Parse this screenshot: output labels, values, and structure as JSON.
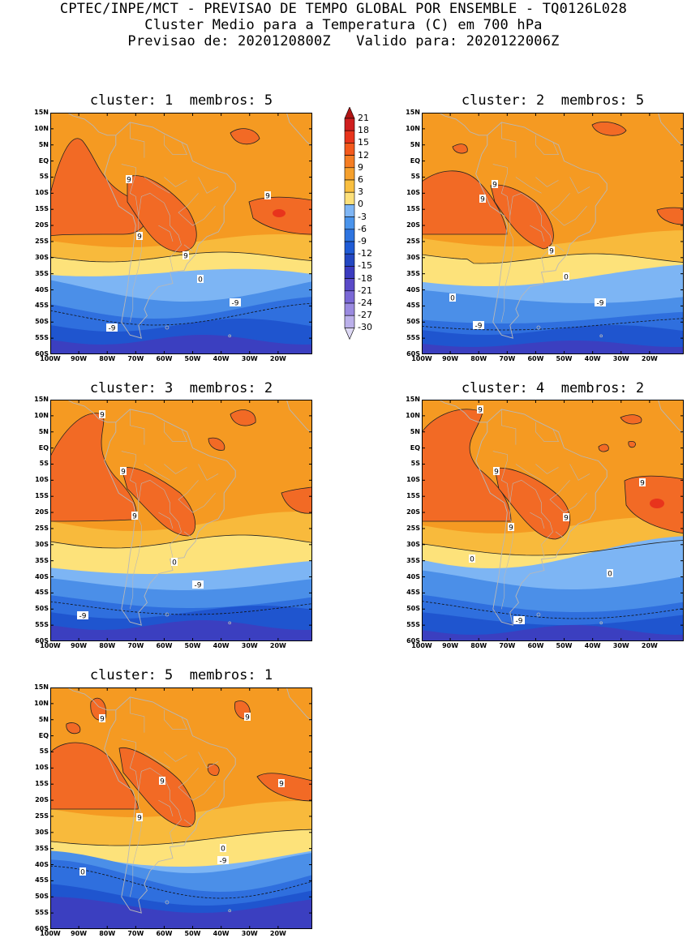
{
  "header": {
    "line1": "CPTEC/INPE/MCT - PREVISAO DE TEMPO GLOBAL POR ENSEMBLE - TQ0126L028",
    "line2": "Cluster Medio para a Temperatura (C) em 700 hPa",
    "line3": "Previsao de: 2020120800Z   Valido para: 2020122006Z"
  },
  "panels": [
    {
      "title": "cluster: 1  membros: 5",
      "labels": [
        "9",
        "9",
        "9",
        "9",
        "0",
        "-9",
        "-9"
      ]
    },
    {
      "title": "cluster: 2  membros: 5",
      "labels": [
        "9",
        "9",
        "9",
        "0",
        "0",
        "-9",
        "-9"
      ]
    },
    {
      "title": "cluster: 3  membros: 2",
      "labels": [
        "9",
        "9",
        "9",
        "0",
        "-9",
        "-9"
      ]
    },
    {
      "title": "cluster: 4  membros: 2",
      "labels": [
        "9",
        "9",
        "9",
        "9",
        "9",
        "0",
        "0",
        "-9"
      ]
    },
    {
      "title": "cluster: 5  membros: 1",
      "labels": [
        "9",
        "9",
        "9",
        "9",
        "9",
        "0",
        "0",
        "-9"
      ]
    }
  ],
  "axes": {
    "lat_ticks": [
      "15N",
      "10N",
      "5N",
      "EQ",
      "5S",
      "10S",
      "15S",
      "20S",
      "25S",
      "30S",
      "35S",
      "40S",
      "45S",
      "50S",
      "55S",
      "60S"
    ],
    "lon_ticks": [
      "100W",
      "90W",
      "80W",
      "70W",
      "60W",
      "50W",
      "40W",
      "30W",
      "20W"
    ]
  },
  "colorbar": {
    "labels": [
      "21",
      "18",
      "15",
      "12",
      "9",
      "6",
      "3",
      "0",
      "-3",
      "-6",
      "-9",
      "-12",
      "-15",
      "-18",
      "-21",
      "-24",
      "-27",
      "-30"
    ],
    "colors": [
      "#b11515",
      "#cf1f1f",
      "#e8341c",
      "#f4591c",
      "#f57d23",
      "#f5a02d",
      "#f9bf40",
      "#fde07a",
      "#7fb6f5",
      "#4a94ec",
      "#2e74e0",
      "#1f5bd6",
      "#2347c2",
      "#3b3bbf",
      "#5a4ac8",
      "#7a68d6",
      "#9a8ae0",
      "#bbb0ea",
      "#ddd8f4"
    ]
  },
  "colors": {
    "t9plus": "#f26a25",
    "t6": "#f59a22",
    "t3": "#f8ba3c",
    "t0": "#fde27a",
    "tm3": "#7db5f4",
    "tm6": "#4b8fe8",
    "tm9": "#2f6fde",
    "tm12": "#1f55cf",
    "tm15": "#3b3fc0",
    "tm18": "#5c52cc",
    "land": "#b8b8b8"
  }
}
